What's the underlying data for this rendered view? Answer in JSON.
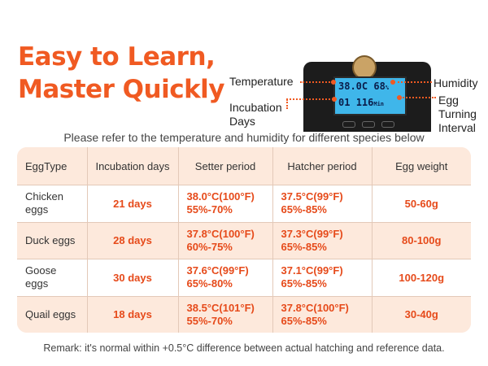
{
  "headline": {
    "line1": "Easy to Learn,",
    "line2": "Master Quickly"
  },
  "device": {
    "lcd_row1": "38.0C",
    "lcd_row1_right": "68",
    "lcd_row1_unit": "%",
    "lcd_row2": "01",
    "lcd_row2_right": "116",
    "lcd_row2_unit": "Min"
  },
  "labels": {
    "temperature": "Temperature",
    "humidity": "Humidity",
    "incubation_days_1": "Incubation",
    "incubation_days_2": "Days",
    "egg_turning_1": "Egg",
    "egg_turning_2": "Turning",
    "egg_turning_3": "Interval"
  },
  "subtitle": "Please refer to the temperature and humidity for different species below",
  "table": {
    "headers": [
      "EggType",
      "Incubation days",
      "Setter period",
      "Hatcher period",
      "Egg weight"
    ],
    "rows": [
      {
        "type_1": "Chicken",
        "type_2": "eggs",
        "days": "21 days",
        "setter_temp": "38.0°C(100°F)",
        "setter_hum": "55%-70%",
        "hatcher_temp": "37.5°C(99°F)",
        "hatcher_hum": "65%-85%",
        "weight": "50-60g"
      },
      {
        "type_1": "Duck eggs",
        "type_2": "",
        "days": "28 days",
        "setter_temp": "37.8°C(100°F)",
        "setter_hum": "60%-75%",
        "hatcher_temp": "37.3°C(99°F)",
        "hatcher_hum": "65%-85%",
        "weight": "80-100g"
      },
      {
        "type_1": "Goose",
        "type_2": "eggs",
        "days": "30 days",
        "setter_temp": "37.6°C(99°F)",
        "setter_hum": "65%-80%",
        "hatcher_temp": "37.1°C(99°F)",
        "hatcher_hum": "65%-85%",
        "weight": "100-120g"
      },
      {
        "type_1": "Quail eggs",
        "type_2": "",
        "days": "18 days",
        "setter_temp": "38.5°C(101°F)",
        "setter_hum": "55%-70%",
        "hatcher_temp": "37.8°C(100°F)",
        "hatcher_hum": "65%-85%",
        "weight": "30-40g"
      }
    ]
  },
  "remark": "Remark: it's normal within +0.5°C difference between actual hatching and reference data.",
  "colors": {
    "accent": "#f05a22",
    "table_tint": "#fde9dc",
    "lcd": "#3fb6ea"
  }
}
